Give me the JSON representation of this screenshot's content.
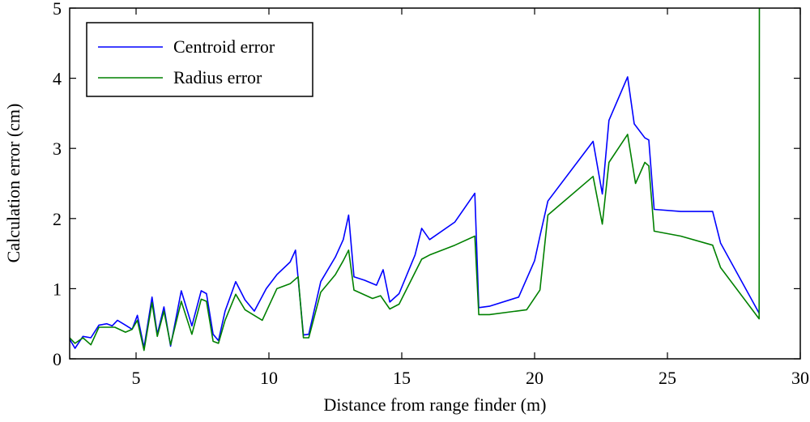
{
  "chart_data": {
    "type": "line",
    "title": "",
    "xlabel": "Distance from range finder (m)",
    "ylabel": "Calculation error (cm)",
    "xlim": [
      2.5,
      30
    ],
    "ylim": [
      0,
      5
    ],
    "xticks": [
      5,
      10,
      15,
      20,
      25,
      30
    ],
    "yticks": [
      0,
      1,
      2,
      3,
      4,
      5
    ],
    "grid": false,
    "legend_position": "top-left",
    "series": [
      {
        "name": "Centroid error",
        "color": "#0000ff",
        "points": [
          [
            2.5,
            0.28
          ],
          [
            2.7,
            0.15
          ],
          [
            3.0,
            0.32
          ],
          [
            3.3,
            0.3
          ],
          [
            3.6,
            0.48
          ],
          [
            3.9,
            0.5
          ],
          [
            4.1,
            0.47
          ],
          [
            4.3,
            0.55
          ],
          [
            4.6,
            0.48
          ],
          [
            4.85,
            0.42
          ],
          [
            5.05,
            0.62
          ],
          [
            5.3,
            0.16
          ],
          [
            5.6,
            0.88
          ],
          [
            5.8,
            0.35
          ],
          [
            6.05,
            0.74
          ],
          [
            6.3,
            0.18
          ],
          [
            6.7,
            0.97
          ],
          [
            7.1,
            0.47
          ],
          [
            7.45,
            0.97
          ],
          [
            7.65,
            0.93
          ],
          [
            7.9,
            0.35
          ],
          [
            8.1,
            0.26
          ],
          [
            8.35,
            0.68
          ],
          [
            8.75,
            1.1
          ],
          [
            9.1,
            0.84
          ],
          [
            9.45,
            0.68
          ],
          [
            9.9,
            1.0
          ],
          [
            10.3,
            1.2
          ],
          [
            10.8,
            1.38
          ],
          [
            11.0,
            1.55
          ],
          [
            11.3,
            0.34
          ],
          [
            11.5,
            0.35
          ],
          [
            11.95,
            1.1
          ],
          [
            12.5,
            1.45
          ],
          [
            12.8,
            1.7
          ],
          [
            13.0,
            2.05
          ],
          [
            13.2,
            1.17
          ],
          [
            13.6,
            1.12
          ],
          [
            14.05,
            1.05
          ],
          [
            14.3,
            1.27
          ],
          [
            14.55,
            0.81
          ],
          [
            14.9,
            0.93
          ],
          [
            15.5,
            1.48
          ],
          [
            15.75,
            1.86
          ],
          [
            16.05,
            1.7
          ],
          [
            17.0,
            1.95
          ],
          [
            17.75,
            2.36
          ],
          [
            17.9,
            0.73
          ],
          [
            18.3,
            0.75
          ],
          [
            19.4,
            0.88
          ],
          [
            20.0,
            1.4
          ],
          [
            20.2,
            1.75
          ],
          [
            20.5,
            2.25
          ],
          [
            22.2,
            3.1
          ],
          [
            22.55,
            2.35
          ],
          [
            22.8,
            3.4
          ],
          [
            23.5,
            4.02
          ],
          [
            23.75,
            3.35
          ],
          [
            24.15,
            3.15
          ],
          [
            24.3,
            3.12
          ],
          [
            24.5,
            2.13
          ],
          [
            25.5,
            2.1
          ],
          [
            26.7,
            2.1
          ],
          [
            27.0,
            1.65
          ],
          [
            28.45,
            0.65
          ]
        ]
      },
      {
        "name": "Radius error",
        "color": "#008000",
        "points": [
          [
            2.5,
            0.3
          ],
          [
            2.7,
            0.22
          ],
          [
            3.0,
            0.3
          ],
          [
            3.3,
            0.2
          ],
          [
            3.6,
            0.45
          ],
          [
            4.2,
            0.45
          ],
          [
            4.6,
            0.38
          ],
          [
            4.85,
            0.42
          ],
          [
            5.05,
            0.55
          ],
          [
            5.3,
            0.12
          ],
          [
            5.6,
            0.8
          ],
          [
            5.8,
            0.32
          ],
          [
            6.05,
            0.68
          ],
          [
            6.3,
            0.2
          ],
          [
            6.7,
            0.82
          ],
          [
            7.1,
            0.35
          ],
          [
            7.45,
            0.85
          ],
          [
            7.65,
            0.82
          ],
          [
            7.9,
            0.25
          ],
          [
            8.1,
            0.22
          ],
          [
            8.35,
            0.55
          ],
          [
            8.75,
            0.92
          ],
          [
            9.1,
            0.7
          ],
          [
            9.75,
            0.55
          ],
          [
            10.3,
            1.0
          ],
          [
            10.8,
            1.07
          ],
          [
            11.1,
            1.17
          ],
          [
            11.3,
            0.3
          ],
          [
            11.5,
            0.3
          ],
          [
            11.95,
            0.95
          ],
          [
            12.5,
            1.2
          ],
          [
            12.8,
            1.4
          ],
          [
            13.0,
            1.55
          ],
          [
            13.2,
            0.98
          ],
          [
            13.9,
            0.86
          ],
          [
            14.2,
            0.9
          ],
          [
            14.55,
            0.71
          ],
          [
            14.9,
            0.78
          ],
          [
            15.75,
            1.42
          ],
          [
            16.05,
            1.48
          ],
          [
            17.0,
            1.62
          ],
          [
            17.75,
            1.75
          ],
          [
            17.9,
            0.63
          ],
          [
            18.3,
            0.63
          ],
          [
            19.7,
            0.7
          ],
          [
            20.2,
            0.98
          ],
          [
            20.5,
            2.05
          ],
          [
            22.2,
            2.6
          ],
          [
            22.55,
            1.92
          ],
          [
            22.8,
            2.8
          ],
          [
            23.5,
            3.2
          ],
          [
            23.8,
            2.5
          ],
          [
            24.15,
            2.8
          ],
          [
            24.3,
            2.75
          ],
          [
            24.5,
            1.82
          ],
          [
            25.5,
            1.75
          ],
          [
            26.7,
            1.62
          ],
          [
            27.0,
            1.3
          ],
          [
            28.45,
            0.57
          ],
          [
            28.46,
            5.0
          ]
        ]
      }
    ]
  }
}
